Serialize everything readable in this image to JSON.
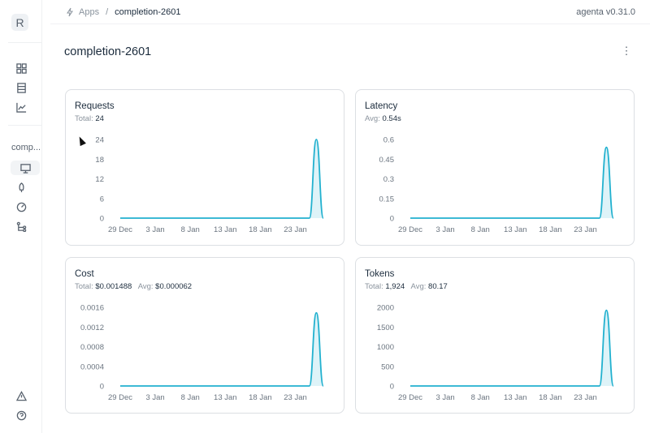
{
  "sidebar": {
    "logo": "R",
    "app_label": "comp...",
    "icons": [
      "grid-icon",
      "database-icon",
      "chart-icon",
      "monitor-icon",
      "rocket-icon",
      "gauge-icon",
      "git-branch-icon",
      "alert-icon",
      "help-icon"
    ],
    "active": "monitor-icon"
  },
  "header": {
    "breadcrumb": [
      "Apps",
      "completion-2601"
    ],
    "separator": "/",
    "version": "agenta v0.31.0"
  },
  "page": {
    "title": "completion-2601",
    "more_label": "⋮"
  },
  "accent": "#22b1cf",
  "chart_data": [
    {
      "type": "area",
      "title": "Requests",
      "stats": [
        {
          "label": "Total:",
          "value": "24"
        }
      ],
      "yticks": [
        "0",
        "6",
        "12",
        "18",
        "24"
      ],
      "ylim": [
        0,
        24
      ],
      "xticks": [
        "29 Dec",
        "3 Jan",
        "8 Jan",
        "13 Jan",
        "18 Jan",
        "23 Jan"
      ],
      "x": [
        "29 Dec",
        "30 Dec",
        "31 Dec",
        "1 Jan",
        "2 Jan",
        "3 Jan",
        "4 Jan",
        "5 Jan",
        "6 Jan",
        "7 Jan",
        "8 Jan",
        "9 Jan",
        "10 Jan",
        "11 Jan",
        "12 Jan",
        "13 Jan",
        "14 Jan",
        "15 Jan",
        "16 Jan",
        "17 Jan",
        "18 Jan",
        "19 Jan",
        "20 Jan",
        "21 Jan",
        "22 Jan",
        "23 Jan",
        "24 Jan",
        "25 Jan",
        "26 Jan",
        "27 Jan"
      ],
      "values": [
        0,
        0,
        0,
        0,
        0,
        0,
        0,
        0,
        0,
        0,
        0,
        0,
        0,
        0,
        0,
        0,
        0,
        0,
        0,
        0,
        0,
        0,
        0,
        0,
        0,
        0,
        0,
        0,
        24,
        0
      ]
    },
    {
      "type": "area",
      "title": "Latency",
      "stats": [
        {
          "label": "Avg:",
          "value": "0.54s"
        }
      ],
      "yticks": [
        "0",
        "0.15",
        "0.3",
        "0.45",
        "0.6"
      ],
      "ylim": [
        0,
        0.6
      ],
      "xticks": [
        "29 Dec",
        "3 Jan",
        "8 Jan",
        "13 Jan",
        "18 Jan",
        "23 Jan"
      ],
      "values": [
        0,
        0,
        0,
        0,
        0,
        0,
        0,
        0,
        0,
        0,
        0,
        0,
        0,
        0,
        0,
        0,
        0,
        0,
        0,
        0,
        0,
        0,
        0,
        0,
        0,
        0,
        0,
        0,
        0.54,
        0
      ]
    },
    {
      "type": "area",
      "title": "Cost",
      "stats": [
        {
          "label": "Total:",
          "value": "$0.001488"
        },
        {
          "label": "Avg:",
          "value": "$0.000062"
        }
      ],
      "yticks": [
        "0",
        "0.0004",
        "0.0008",
        "0.0012",
        "0.0016"
      ],
      "ylim": [
        0,
        0.0016
      ],
      "xticks": [
        "29 Dec",
        "3 Jan",
        "8 Jan",
        "13 Jan",
        "18 Jan",
        "23 Jan"
      ],
      "values": [
        0,
        0,
        0,
        0,
        0,
        0,
        0,
        0,
        0,
        0,
        0,
        0,
        0,
        0,
        0,
        0,
        0,
        0,
        0,
        0,
        0,
        0,
        0,
        0,
        0,
        0,
        0,
        0,
        0.001488,
        0
      ]
    },
    {
      "type": "area",
      "title": "Tokens",
      "stats": [
        {
          "label": "Total:",
          "value": "1,924"
        },
        {
          "label": "Avg:",
          "value": "80.17"
        }
      ],
      "yticks": [
        "0",
        "500",
        "1000",
        "1500",
        "2000"
      ],
      "ylim": [
        0,
        2000
      ],
      "xticks": [
        "29 Dec",
        "3 Jan",
        "8 Jan",
        "13 Jan",
        "18 Jan",
        "23 Jan"
      ],
      "values": [
        0,
        0,
        0,
        0,
        0,
        0,
        0,
        0,
        0,
        0,
        0,
        0,
        0,
        0,
        0,
        0,
        0,
        0,
        0,
        0,
        0,
        0,
        0,
        0,
        0,
        0,
        0,
        0,
        1924,
        0
      ]
    }
  ]
}
